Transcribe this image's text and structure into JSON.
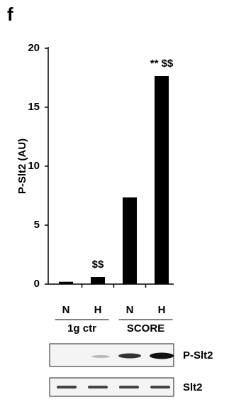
{
  "panel_label": "f",
  "chart_data": {
    "type": "bar",
    "y_label": "P-Slt2 (AU)",
    "categories": [
      "N",
      "H",
      "N",
      "H"
    ],
    "values": [
      0.2,
      0.6,
      7.35,
      17.65
    ],
    "color": "#000000",
    "groups": [
      "1g ctr",
      "SCORE"
    ],
    "bar_annotations": [
      null,
      "$$",
      null,
      "** $$"
    ],
    "ylim": [
      0,
      20
    ],
    "yticks": [
      0,
      5,
      10,
      15,
      20
    ],
    "grid": false
  },
  "blots": [
    "P-Slt2",
    "Slt2"
  ]
}
